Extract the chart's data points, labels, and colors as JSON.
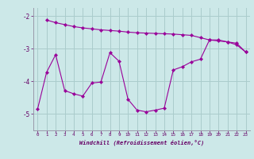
{
  "xlabel": "Windchill (Refroidissement éolien,°C)",
  "bg_color": "#cce8e8",
  "line_color": "#990099",
  "grid_color": "#aacccc",
  "spine_color": "#9999aa",
  "x_ticks": [
    0,
    1,
    2,
    3,
    4,
    5,
    6,
    7,
    8,
    9,
    10,
    11,
    12,
    13,
    14,
    15,
    16,
    17,
    18,
    19,
    20,
    21,
    22,
    23
  ],
  "y_ticks": [
    -2,
    -3,
    -4,
    -5
  ],
  "ylim": [
    -5.5,
    -1.75
  ],
  "xlim": [
    -0.5,
    23.5
  ],
  "curve1_x": [
    1,
    2,
    3,
    4,
    5,
    6,
    7,
    8,
    9,
    10,
    11,
    12,
    13,
    14,
    15,
    16,
    17,
    18,
    19,
    20,
    21,
    22,
    23
  ],
  "curve1_y": [
    -2.12,
    -2.2,
    -2.26,
    -2.32,
    -2.36,
    -2.39,
    -2.42,
    -2.44,
    -2.46,
    -2.49,
    -2.51,
    -2.52,
    -2.53,
    -2.54,
    -2.55,
    -2.57,
    -2.59,
    -2.66,
    -2.73,
    -2.76,
    -2.79,
    -2.83,
    -3.1
  ],
  "curve2_x": [
    0,
    1,
    2,
    3,
    4,
    5,
    6,
    7,
    8,
    9,
    10,
    11,
    12,
    13,
    14,
    15,
    16,
    17,
    18,
    19,
    20,
    21,
    22,
    23
  ],
  "curve2_y": [
    -4.85,
    -3.72,
    -3.18,
    -4.28,
    -4.38,
    -4.45,
    -4.05,
    -4.02,
    -3.12,
    -3.38,
    -4.55,
    -4.88,
    -4.93,
    -4.88,
    -4.82,
    -3.65,
    -3.55,
    -3.4,
    -3.32,
    -2.73,
    -2.73,
    -2.79,
    -2.88,
    -3.1
  ]
}
